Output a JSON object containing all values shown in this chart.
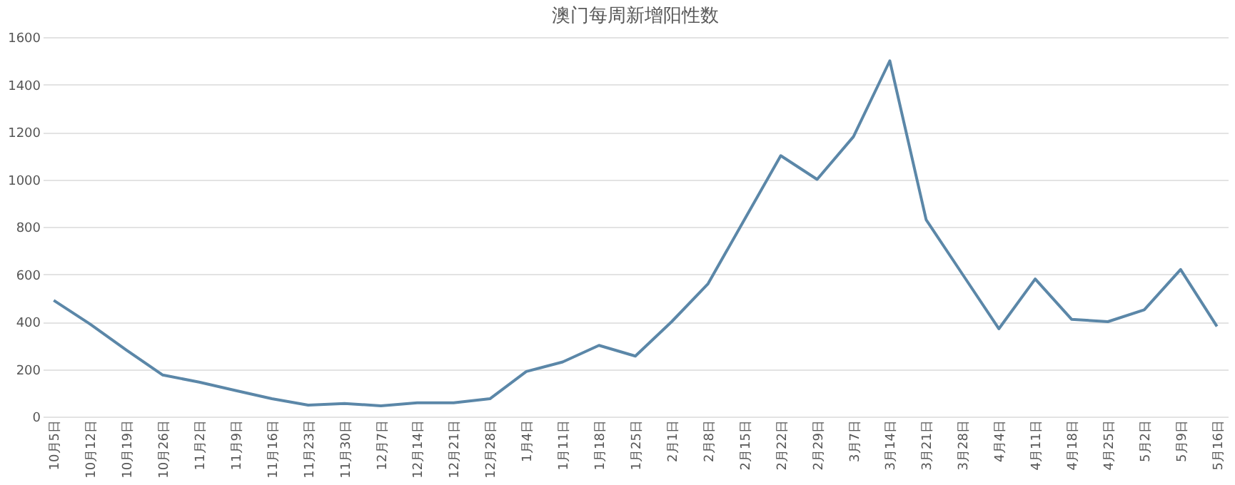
{
  "chart_data": {
    "type": "line",
    "title": "澳门每周新增阳性数",
    "categories": [
      "10月5日",
      "10月12日",
      "10月19日",
      "10月26日",
      "11月2日",
      "11月9日",
      "11月16日",
      "11月23日",
      "11月30日",
      "12月7日",
      "12月14日",
      "12月21日",
      "12月28日",
      "1月4日",
      "1月11日",
      "1月18日",
      "1月25日",
      "2月1日",
      "2月8日",
      "2月15日",
      "2月22日",
      "2月29日",
      "3月7日",
      "3月14日",
      "3月21日",
      "3月28日",
      "4月4日",
      "4月11日",
      "4月18日",
      "4月25日",
      "5月2日",
      "5月9日",
      "5月16日"
    ],
    "series": [
      {
        "color": "#5b87a8",
        "values": [
          490,
          390,
          280,
          175,
          145,
          110,
          75,
          48,
          55,
          45,
          58,
          58,
          75,
          190,
          230,
          300,
          255,
          400,
          560,
          830,
          1100,
          1000,
          1180,
          1500,
          830,
          600,
          370,
          580,
          410,
          400,
          450,
          620,
          380
        ]
      }
    ],
    "ylim": [
      0,
      1600
    ],
    "yticks": [
      0,
      200,
      400,
      600,
      800,
      1000,
      1200,
      1400,
      1600
    ],
    "grid": "y",
    "marker": "none",
    "line_style": "solid"
  }
}
